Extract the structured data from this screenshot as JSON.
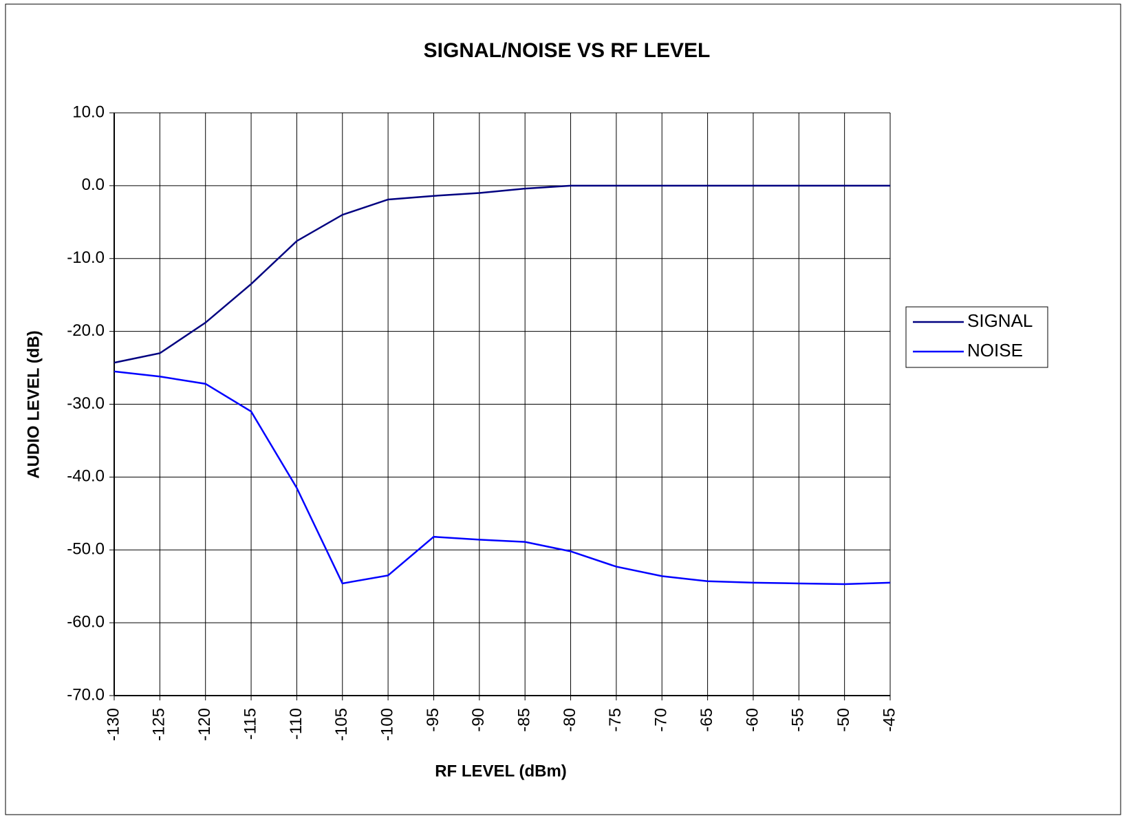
{
  "chart_data": {
    "type": "line",
    "title": "SIGNAL/NOISE VS RF LEVEL",
    "xlabel": "RF LEVEL (dBm)",
    "ylabel": "AUDIO LEVEL (dB)",
    "x": [
      -130,
      -125,
      -120,
      -115,
      -110,
      -105,
      -100,
      -95,
      -90,
      -85,
      -80,
      -75,
      -70,
      -65,
      -60,
      -55,
      -50,
      -45
    ],
    "series": [
      {
        "name": "SIGNAL",
        "color": "#000080",
        "values": [
          -24.3,
          -23.0,
          -18.8,
          -13.5,
          -7.6,
          -4.0,
          -1.9,
          -1.4,
          -1.0,
          -0.4,
          0,
          0,
          0,
          0,
          0,
          0,
          0,
          0
        ]
      },
      {
        "name": "NOISE",
        "color": "#0000ff",
        "values": [
          -25.5,
          -26.2,
          -27.2,
          -31.0,
          -41.5,
          -54.6,
          -53.5,
          -48.2,
          -48.6,
          -48.9,
          -50.2,
          -52.3,
          -53.6,
          -54.3,
          -54.5,
          -54.6,
          -54.7,
          -54.5
        ]
      }
    ],
    "xlim": [
      -130,
      -45
    ],
    "xticks": [
      -130,
      -125,
      -120,
      -115,
      -110,
      -105,
      -100,
      -95,
      -90,
      -85,
      -80,
      -75,
      -70,
      -65,
      -60,
      -55,
      -50,
      -45
    ],
    "ylim": [
      -70,
      10
    ],
    "yticks": [
      {
        "value": -70,
        "label": "-70.0"
      },
      {
        "value": -60,
        "label": "-60.0"
      },
      {
        "value": -50,
        "label": "-50.0"
      },
      {
        "value": -40,
        "label": "-40.0"
      },
      {
        "value": -30,
        "label": "-30.0"
      },
      {
        "value": -20,
        "label": "-20.0"
      },
      {
        "value": -10,
        "label": "-10.0"
      },
      {
        "value": 0,
        "label": "0.0"
      },
      {
        "value": 10,
        "label": "10.0"
      }
    ],
    "grid": true,
    "legend": "right"
  }
}
